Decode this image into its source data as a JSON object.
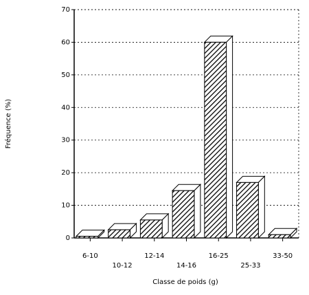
{
  "chart_data": {
    "type": "bar",
    "categories": [
      "6-10",
      "10-12",
      "12-14",
      "14-16",
      "16-25",
      "25-33",
      "33-50"
    ],
    "values": [
      0.5,
      2.5,
      5.5,
      14.5,
      60,
      17,
      1
    ],
    "color": "#000000",
    "xlabel": "Classe de poids (g)",
    "ylabel": "Fréquence (%)",
    "ylim": [
      0,
      70
    ],
    "yticks": [
      0,
      10,
      20,
      30,
      40,
      50,
      60,
      70
    ],
    "grid": true
  }
}
